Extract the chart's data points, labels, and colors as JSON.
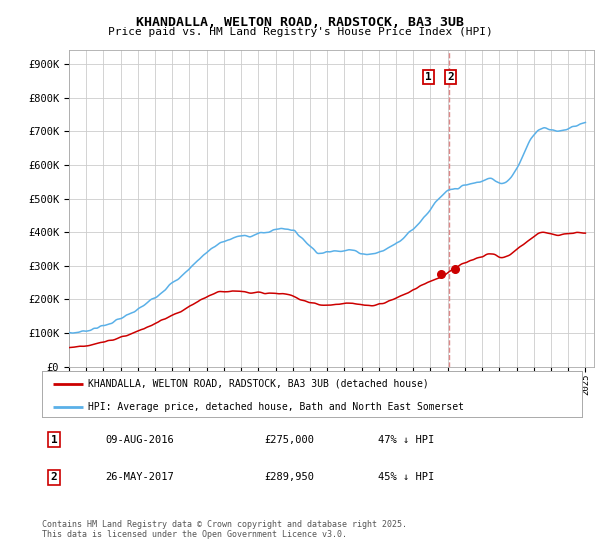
{
  "title": "KHANDALLA, WELTON ROAD, RADSTOCK, BA3 3UB",
  "subtitle": "Price paid vs. HM Land Registry's House Price Index (HPI)",
  "ylabel_ticks": [
    "£0",
    "£100K",
    "£200K",
    "£300K",
    "£400K",
    "£500K",
    "£600K",
    "£700K",
    "£800K",
    "£900K"
  ],
  "ytick_vals": [
    0,
    100000,
    200000,
    300000,
    400000,
    500000,
    600000,
    700000,
    800000,
    900000
  ],
  "ylim": [
    0,
    940000
  ],
  "xlim_start": 1995.0,
  "xlim_end": 2025.5,
  "hpi_color": "#5ab0e8",
  "price_color": "#cc0000",
  "dashed_line_color": "#dd8888",
  "sale1_date_num": 2016.61,
  "sale2_date_num": 2017.4,
  "sale1_price": 275000,
  "sale2_price": 289950,
  "legend_label_price": "KHANDALLA, WELTON ROAD, RADSTOCK, BA3 3UB (detached house)",
  "legend_label_hpi": "HPI: Average price, detached house, Bath and North East Somerset",
  "footer": "Contains HM Land Registry data © Crown copyright and database right 2025.\nThis data is licensed under the Open Government Licence v3.0.",
  "background_color": "#ffffff",
  "grid_color": "#cccccc",
  "hpi_data_x": [
    1995.0,
    1995.5,
    1996.0,
    1996.5,
    1997.0,
    1997.5,
    1998.0,
    1998.5,
    1999.0,
    1999.5,
    2000.0,
    2000.5,
    2001.0,
    2001.5,
    2002.0,
    2002.5,
    2003.0,
    2003.5,
    2004.0,
    2004.5,
    2005.0,
    2005.5,
    2006.0,
    2006.5,
    2007.0,
    2007.5,
    2008.0,
    2008.5,
    2009.0,
    2009.5,
    2010.0,
    2010.5,
    2011.0,
    2011.5,
    2012.0,
    2012.5,
    2013.0,
    2013.5,
    2014.0,
    2014.5,
    2015.0,
    2015.5,
    2016.0,
    2016.5,
    2017.0,
    2017.5,
    2018.0,
    2018.5,
    2019.0,
    2019.5,
    2020.0,
    2020.5,
    2021.0,
    2021.5,
    2022.0,
    2022.5,
    2023.0,
    2023.5,
    2024.0,
    2024.5,
    2025.0
  ],
  "hpi_data_y": [
    100000,
    103000,
    108000,
    114000,
    122000,
    132000,
    143000,
    155000,
    170000,
    188000,
    208000,
    228000,
    248000,
    268000,
    292000,
    318000,
    340000,
    358000,
    372000,
    382000,
    388000,
    390000,
    395000,
    400000,
    408000,
    412000,
    405000,
    385000,
    360000,
    340000,
    340000,
    345000,
    348000,
    345000,
    338000,
    335000,
    340000,
    352000,
    368000,
    388000,
    410000,
    438000,
    468000,
    498000,
    520000,
    530000,
    538000,
    545000,
    552000,
    558000,
    548000,
    555000,
    590000,
    640000,
    690000,
    710000,
    705000,
    700000,
    708000,
    718000,
    725000
  ],
  "price_data_x": [
    1995.0,
    1995.5,
    1996.0,
    1996.5,
    1997.0,
    1997.5,
    1998.0,
    1998.5,
    1999.0,
    1999.5,
    2000.0,
    2000.5,
    2001.0,
    2001.5,
    2002.0,
    2002.5,
    2003.0,
    2003.5,
    2004.0,
    2004.5,
    2005.0,
    2005.5,
    2006.0,
    2006.5,
    2007.0,
    2007.5,
    2008.0,
    2008.5,
    2009.0,
    2009.5,
    2010.0,
    2010.5,
    2011.0,
    2011.5,
    2012.0,
    2012.5,
    2013.0,
    2013.5,
    2014.0,
    2014.5,
    2015.0,
    2015.5,
    2016.0,
    2016.5,
    2017.0,
    2017.5,
    2018.0,
    2018.5,
    2019.0,
    2019.5,
    2020.0,
    2020.5,
    2021.0,
    2021.5,
    2022.0,
    2022.5,
    2023.0,
    2023.5,
    2024.0,
    2024.5,
    2025.0
  ],
  "price_data_y": [
    58000,
    60000,
    63000,
    67000,
    73000,
    80000,
    88000,
    96000,
    106000,
    116000,
    128000,
    140000,
    152000,
    164000,
    178000,
    194000,
    208000,
    218000,
    224000,
    226000,
    224000,
    222000,
    220000,
    218000,
    218000,
    216000,
    210000,
    200000,
    192000,
    185000,
    183000,
    185000,
    188000,
    187000,
    184000,
    182000,
    186000,
    194000,
    204000,
    216000,
    228000,
    242000,
    255000,
    265000,
    280000,
    295000,
    308000,
    318000,
    328000,
    335000,
    325000,
    330000,
    348000,
    368000,
    388000,
    400000,
    395000,
    392000,
    395000,
    398000,
    398000
  ]
}
